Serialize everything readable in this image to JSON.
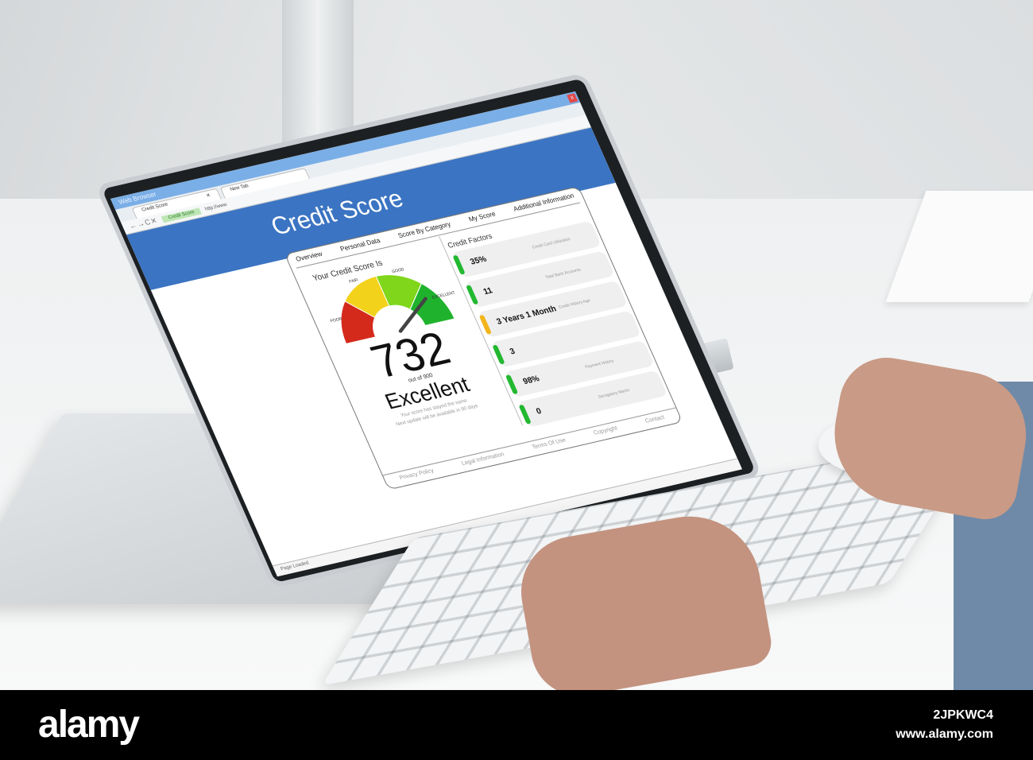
{
  "browser": {
    "window_title": "Web Browser",
    "tabs": [
      {
        "label": "Credit Score"
      },
      {
        "label": "New Tab"
      }
    ],
    "nav_icons": "←→C✕",
    "secure_label": "Credit Score",
    "url": "http://www",
    "close": "x",
    "status": "Page Loaded"
  },
  "header": {
    "title": "Credit Score"
  },
  "nav": [
    "Overview",
    "Personal Data",
    "Score By Category",
    "My Score",
    "Additional Information"
  ],
  "score_panel": {
    "heading": "Your Credit Score Is",
    "gauge_labels": [
      "POOR",
      "FAIR",
      "GOOD",
      "EXCELLENT"
    ],
    "gauge_colors": [
      "#d42a1c",
      "#f2d21b",
      "#7fd61a",
      "#1fb32d"
    ],
    "score": "732",
    "out_of": "out of 900",
    "score_fraction": 0.813,
    "rating": "Excellent",
    "note1": "Your score has stayed the same",
    "note2": "Next update will be available in 90 days"
  },
  "factors": {
    "heading": "Credit Factors",
    "items": [
      {
        "value": "35%",
        "label": "Credit Card Utilization",
        "color": "#22b830"
      },
      {
        "value": "11",
        "label": "Total Bank Accounts",
        "color": "#22b830"
      },
      {
        "value": "3 Years 1 Month",
        "label": "Credit History Age",
        "color": "#f2b51b"
      },
      {
        "value": "3",
        "label": "",
        "color": "#22b830"
      },
      {
        "value": "98%",
        "label": "Payment History",
        "color": "#22b830"
      },
      {
        "value": "0",
        "label": "Derogatory Marks",
        "color": "#22b830"
      }
    ]
  },
  "footer": [
    "Privacy Policy",
    "Legal Information",
    "Terms Of Use",
    "Copyright",
    "Contact"
  ],
  "watermark": {
    "logo": "alamy",
    "image_id": "2JPKWC4",
    "site": "www.alamy.com"
  }
}
